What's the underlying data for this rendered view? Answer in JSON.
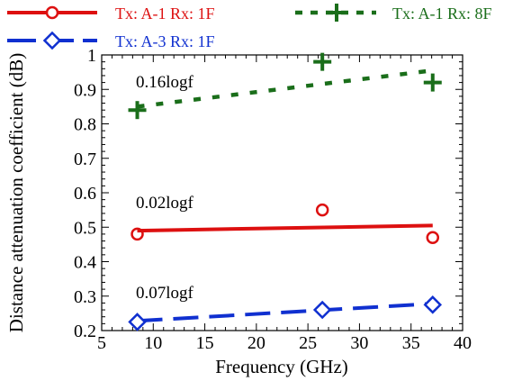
{
  "chart_data": {
    "type": "scatter",
    "xlabel": "Frequency (GHz)",
    "ylabel": "Distance attenuation coefficient (dB)",
    "xlim": [
      5,
      40
    ],
    "ylim": [
      0.2,
      1.0
    ],
    "xticks": [
      5,
      10,
      15,
      20,
      25,
      30,
      35,
      40
    ],
    "yticks": [
      0.2,
      0.3,
      0.4,
      0.5,
      0.6,
      0.7,
      0.8,
      0.9,
      1
    ],
    "ytick_labels": [
      "0.2",
      "0.3",
      "0.4",
      "0.5",
      "0.6",
      "0.7",
      "0.8",
      "0.9",
      "1"
    ],
    "grid": false,
    "legend_position": "top",
    "series": [
      {
        "name": "Tx: A-1 Rx: 1F",
        "color": "#dd1010",
        "marker": "circle",
        "line_style": "solid",
        "x": [
          8.45,
          26.4,
          37.1
        ],
        "y": [
          0.48,
          0.55,
          0.47
        ],
        "fit_label": "0.02logf",
        "fit_x": [
          8.45,
          37.1
        ],
        "fit_y": [
          0.49,
          0.505
        ]
      },
      {
        "name": "Tx: A-1 Rx: 8F",
        "color": "#1a6e1a",
        "marker": "plus",
        "line_style": "dotted",
        "x": [
          8.45,
          26.4,
          37.1
        ],
        "y": [
          0.84,
          0.98,
          0.92
        ],
        "fit_label": "0.16logf",
        "fit_x": [
          8.45,
          37.1
        ],
        "fit_y": [
          0.85,
          0.955
        ]
      },
      {
        "name": "Tx: A-3 Rx: 1F",
        "color": "#1030d0",
        "marker": "diamond",
        "line_style": "dashed",
        "x": [
          8.45,
          26.4,
          37.1
        ],
        "y": [
          0.225,
          0.26,
          0.275
        ],
        "fit_label": "0.07logf",
        "fit_x": [
          8.45,
          37.1
        ],
        "fit_y": [
          0.228,
          0.278
        ]
      }
    ]
  }
}
